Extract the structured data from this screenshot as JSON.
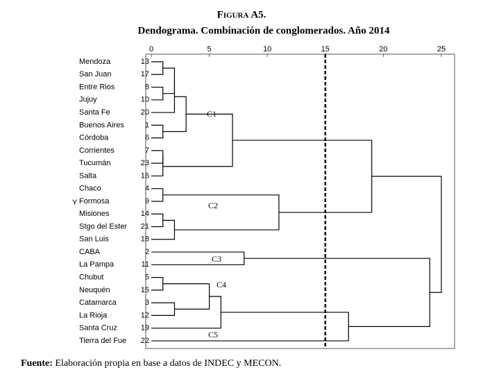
{
  "chart_data": {
    "type": "dendrogram",
    "title": "Figura A5.",
    "subtitle": "Dendograma. Combinación de conglomerados. Año 2014",
    "ylabel": "Y",
    "leaves": [
      "Mendoza",
      "San Juan",
      "Entre Rios",
      "Jujuy",
      "Santa Fe",
      "Buenos Aires",
      "Córdoba",
      "Corrientes",
      "Tucumán",
      "Salta",
      "Chaco",
      "Formosa",
      "Misiones",
      "Stgo del Ester",
      "San Luis",
      "CABA",
      "La Pampa",
      "Chubut",
      "Neuquén",
      "Catamarca",
      "La Rioja",
      "Santa Cruz",
      "Tierra del Fue"
    ],
    "leaf_ids": [
      13,
      17,
      8,
      10,
      20,
      1,
      6,
      7,
      23,
      16,
      4,
      9,
      14,
      21,
      18,
      2,
      11,
      5,
      15,
      3,
      12,
      19,
      22
    ],
    "merges": [
      {
        "children": [
          0,
          1
        ],
        "height": 1
      },
      {
        "children": [
          2,
          3
        ],
        "height": 1
      },
      {
        "children": [
          23,
          24
        ],
        "height": 2
      },
      {
        "children": [
          25,
          4
        ],
        "height": 2
      },
      {
        "children": [
          5,
          6
        ],
        "height": 1
      },
      {
        "children": [
          26,
          27
        ],
        "height": 3
      },
      {
        "children": [
          7,
          8
        ],
        "height": 1
      },
      {
        "children": [
          29,
          9
        ],
        "height": 1
      },
      {
        "children": [
          28,
          30
        ],
        "height": 7
      },
      {
        "children": [
          10,
          11
        ],
        "height": 1
      },
      {
        "children": [
          12,
          13
        ],
        "height": 1
      },
      {
        "children": [
          33,
          14
        ],
        "height": 2
      },
      {
        "children": [
          32,
          34
        ],
        "height": 11
      },
      {
        "children": [
          31,
          35
        ],
        "height": 19
      },
      {
        "children": [
          15,
          16
        ],
        "height": 8
      },
      {
        "children": [
          17,
          18
        ],
        "height": 1
      },
      {
        "children": [
          19,
          20
        ],
        "height": 2
      },
      {
        "children": [
          38,
          39
        ],
        "height": 5
      },
      {
        "children": [
          40,
          21
        ],
        "height": 6
      },
      {
        "children": [
          41,
          22
        ],
        "height": 17
      },
      {
        "children": [
          37,
          42
        ],
        "height": 24
      },
      {
        "children": [
          36,
          43
        ],
        "height": 25
      }
    ],
    "cluster_labels": [
      "C1",
      "C2",
      "C3",
      "C4",
      "C5"
    ],
    "cut": 15,
    "xlim": [
      0,
      25
    ],
    "xticks": [
      0,
      5,
      10,
      15,
      20,
      25
    ],
    "color": "#000000"
  },
  "source_label": "Fuente:",
  "source_text": "Elaboración propia en base a datos de INDEC y MECON."
}
